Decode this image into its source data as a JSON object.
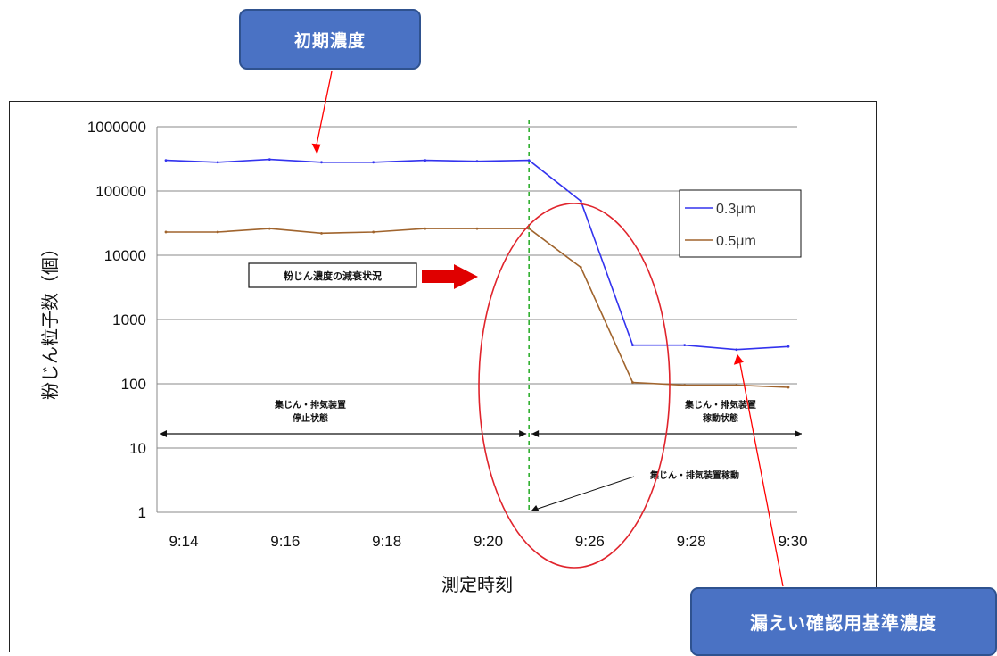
{
  "callouts": {
    "initial": "初期濃度",
    "reference": "漏えい確認用基準濃度"
  },
  "chart_data": {
    "type": "line",
    "title": "",
    "xlabel": "測定時刻",
    "ylabel": "粉じん粒子数（個）",
    "yscale": "log",
    "ylim": [
      1,
      1000000
    ],
    "ytick_labels": [
      "1000000",
      "100000",
      "10000",
      "1000",
      "100",
      "10",
      "1"
    ],
    "xtick_labels": [
      "9:14",
      "9:16",
      "9:18",
      "9:20",
      "9:26",
      "9:28",
      "9:30"
    ],
    "grid": true,
    "legend_position": "upper-right",
    "x": [
      "9:14",
      "9:15",
      "9:16",
      "9:17",
      "9:18",
      "9:19",
      "9:20",
      "9:21",
      "9:26",
      "9:27",
      "9:28",
      "9:29",
      "9:30"
    ],
    "series": [
      {
        "name": "0.3μm",
        "color": "#3333ee",
        "values": [
          300000,
          280000,
          310000,
          280000,
          280000,
          300000,
          290000,
          300000,
          70000,
          400,
          400,
          340,
          380
        ]
      },
      {
        "name": "0.5μm",
        "color": "#a0642d",
        "values": [
          23000,
          23000,
          26000,
          22000,
          23000,
          26000,
          26000,
          26000,
          6500,
          105,
          95,
          95,
          88
        ]
      }
    ],
    "annotations": {
      "decay_status": "粉じん濃度の減衰状況",
      "stopped_state": [
        "集じん・排気装置",
        "停止状態"
      ],
      "operating_state": [
        "集じん・排気装置",
        "稼動状態"
      ],
      "start_event": "集じん・排気装置稼動"
    },
    "colors": {
      "callout_fill": "#4a72c4",
      "pointer_line": "#ff0000",
      "highlight_ellipse": "#e0242c",
      "event_line": "#22aa22"
    }
  }
}
